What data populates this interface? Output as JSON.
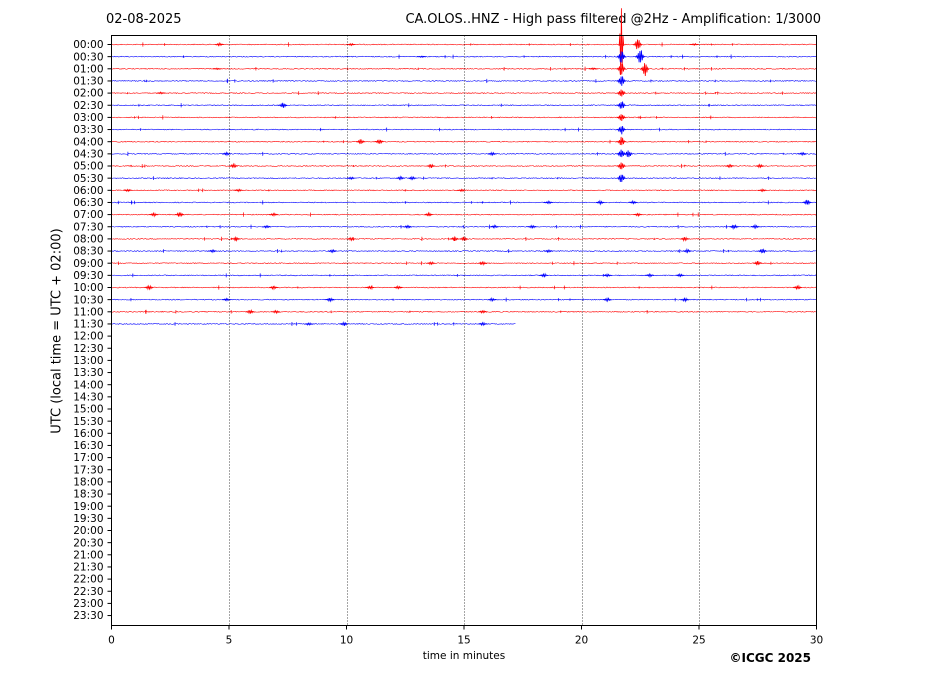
{
  "header": {
    "date": "02-08-2025",
    "title": "CA.OLOS..HNZ - High pass filtered @2Hz - Amplification: 1/3000"
  },
  "footer": {
    "copyright": "©ICGC 2025"
  },
  "chart_data": {
    "type": "line",
    "title": "CA.OLOS..HNZ - High pass filtered @2Hz - Amplification: 1/3000",
    "xlabel": "time in minutes",
    "ylabel": "UTC (local time = UTC + 02:00)",
    "xlim": [
      0,
      30
    ],
    "x_ticks": [
      0,
      5,
      10,
      15,
      20,
      25,
      30
    ],
    "vertical_gridlines_at": [
      5,
      10,
      15,
      20,
      25
    ],
    "row_labels": [
      "00:00",
      "00:30",
      "01:00",
      "01:30",
      "02:00",
      "02:30",
      "03:00",
      "03:30",
      "04:00",
      "04:30",
      "05:00",
      "05:30",
      "06:00",
      "06:30",
      "07:00",
      "07:30",
      "08:00",
      "08:30",
      "09:00",
      "09:30",
      "10:00",
      "10:30",
      "11:00",
      "11:30",
      "12:00",
      "12:30",
      "13:00",
      "13:30",
      "14:00",
      "14:30",
      "15:00",
      "15:30",
      "16:00",
      "16:30",
      "17:00",
      "17:30",
      "18:00",
      "18:30",
      "19:00",
      "19:30",
      "20:00",
      "20:30",
      "21:00",
      "21:30",
      "22:00",
      "22:30",
      "23:00",
      "23:30"
    ],
    "colors": {
      "even_rows": "#ff0000",
      "odd_rows": "#0000ff",
      "grid": "#000000"
    },
    "traces": [
      {
        "row": "00:00",
        "end_minute": 30,
        "events": [
          {
            "minute": 4.6,
            "amp": 0.3
          },
          {
            "minute": 10.2,
            "amp": 0.2
          },
          {
            "minute": 21.7,
            "amp": 9.5,
            "duration": 0.1
          },
          {
            "minute": 22.4,
            "amp": 1.2
          },
          {
            "minute": 24.8,
            "amp": 0.2
          }
        ]
      },
      {
        "row": "00:30",
        "end_minute": 30,
        "events": [
          {
            "minute": 13.2,
            "amp": 0.15
          },
          {
            "minute": 21.7,
            "amp": 1.5
          },
          {
            "minute": 22.5,
            "amp": 1.8
          }
        ]
      },
      {
        "row": "01:00",
        "end_minute": 30,
        "events": [
          {
            "minute": 4.5,
            "amp": 0.15
          },
          {
            "minute": 20.5,
            "amp": 0.2
          },
          {
            "minute": 21.7,
            "amp": 1.5
          },
          {
            "minute": 22.7,
            "amp": 1.5
          }
        ]
      },
      {
        "row": "01:30",
        "end_minute": 30,
        "events": [
          {
            "minute": 21.7,
            "amp": 1.2
          }
        ]
      },
      {
        "row": "02:00",
        "end_minute": 30,
        "events": [
          {
            "minute": 2.1,
            "amp": 0.2
          },
          {
            "minute": 21.7,
            "amp": 1.0
          }
        ]
      },
      {
        "row": "02:30",
        "end_minute": 30,
        "events": [
          {
            "minute": 7.3,
            "amp": 0.6
          },
          {
            "minute": 21.7,
            "amp": 1.0
          }
        ]
      },
      {
        "row": "03:00",
        "end_minute": 30,
        "events": [
          {
            "minute": 21.7,
            "amp": 1.0
          }
        ]
      },
      {
        "row": "03:30",
        "end_minute": 30,
        "events": [
          {
            "minute": 21.7,
            "amp": 1.0
          }
        ]
      },
      {
        "row": "04:00",
        "end_minute": 30,
        "events": [
          {
            "minute": 10.6,
            "amp": 0.5
          },
          {
            "minute": 11.4,
            "amp": 0.55
          },
          {
            "minute": 21.7,
            "amp": 1.0
          }
        ]
      },
      {
        "row": "04:30",
        "end_minute": 30,
        "events": [
          {
            "minute": 4.9,
            "amp": 0.3
          },
          {
            "minute": 16.2,
            "amp": 0.3
          },
          {
            "minute": 21.7,
            "amp": 1.0
          },
          {
            "minute": 22.0,
            "amp": 0.8
          },
          {
            "minute": 29.4,
            "amp": 0.3
          }
        ]
      },
      {
        "row": "05:00",
        "end_minute": 30,
        "events": [
          {
            "minute": 5.2,
            "amp": 0.4
          },
          {
            "minute": 13.6,
            "amp": 0.4
          },
          {
            "minute": 21.7,
            "amp": 1.0
          },
          {
            "minute": 26.3,
            "amp": 0.3
          },
          {
            "minute": 27.6,
            "amp": 0.35
          }
        ]
      },
      {
        "row": "05:30",
        "end_minute": 30,
        "events": [
          {
            "minute": 10.2,
            "amp": 0.25
          },
          {
            "minute": 12.3,
            "amp": 0.35
          },
          {
            "minute": 12.8,
            "amp": 0.35
          },
          {
            "minute": 21.7,
            "amp": 1.0
          }
        ]
      },
      {
        "row": "06:00",
        "end_minute": 30,
        "events": [
          {
            "minute": 0.7,
            "amp": 0.25
          },
          {
            "minute": 5.4,
            "amp": 0.25
          },
          {
            "minute": 14.9,
            "amp": 0.25
          },
          {
            "minute": 27.7,
            "amp": 0.25
          }
        ]
      },
      {
        "row": "06:30",
        "end_minute": 30,
        "events": [
          {
            "minute": 18.6,
            "amp": 0.3
          },
          {
            "minute": 20.8,
            "amp": 0.35
          },
          {
            "minute": 22.2,
            "amp": 0.3
          },
          {
            "minute": 29.6,
            "amp": 0.55
          }
        ]
      },
      {
        "row": "07:00",
        "end_minute": 30,
        "events": [
          {
            "minute": 1.8,
            "amp": 0.35
          },
          {
            "minute": 2.9,
            "amp": 0.55
          },
          {
            "minute": 6.9,
            "amp": 0.3
          },
          {
            "minute": 13.5,
            "amp": 0.35
          },
          {
            "minute": 22.4,
            "amp": 0.3
          }
        ]
      },
      {
        "row": "07:30",
        "end_minute": 30,
        "events": [
          {
            "minute": 6.6,
            "amp": 0.25
          },
          {
            "minute": 12.6,
            "amp": 0.3
          },
          {
            "minute": 16.3,
            "amp": 0.3
          },
          {
            "minute": 17.9,
            "amp": 0.35
          },
          {
            "minute": 26.5,
            "amp": 0.45
          },
          {
            "minute": 27.4,
            "amp": 0.35
          }
        ]
      },
      {
        "row": "08:00",
        "end_minute": 30,
        "events": [
          {
            "minute": 5.3,
            "amp": 0.35
          },
          {
            "minute": 10.2,
            "amp": 0.35
          },
          {
            "minute": 14.6,
            "amp": 0.45
          },
          {
            "minute": 15.0,
            "amp": 0.45
          },
          {
            "minute": 24.4,
            "amp": 0.4
          }
        ]
      },
      {
        "row": "08:30",
        "end_minute": 30,
        "events": [
          {
            "minute": 4.3,
            "amp": 0.25
          },
          {
            "minute": 9.4,
            "amp": 0.3
          },
          {
            "minute": 18.6,
            "amp": 0.3
          },
          {
            "minute": 24.5,
            "amp": 0.35
          },
          {
            "minute": 27.7,
            "amp": 0.5
          }
        ]
      },
      {
        "row": "09:00",
        "end_minute": 30,
        "events": [
          {
            "minute": 13.6,
            "amp": 0.3
          },
          {
            "minute": 15.8,
            "amp": 0.3
          },
          {
            "minute": 27.5,
            "amp": 0.45
          }
        ]
      },
      {
        "row": "09:30",
        "end_minute": 30,
        "events": [
          {
            "minute": 18.4,
            "amp": 0.4
          },
          {
            "minute": 21.1,
            "amp": 0.3
          },
          {
            "minute": 22.9,
            "amp": 0.3
          },
          {
            "minute": 24.2,
            "amp": 0.3
          }
        ]
      },
      {
        "row": "10:00",
        "end_minute": 30,
        "events": [
          {
            "minute": 1.6,
            "amp": 0.45
          },
          {
            "minute": 6.9,
            "amp": 0.35
          },
          {
            "minute": 11.0,
            "amp": 0.3
          },
          {
            "minute": 12.2,
            "amp": 0.3
          },
          {
            "minute": 29.2,
            "amp": 0.4
          }
        ]
      },
      {
        "row": "10:30",
        "end_minute": 30,
        "events": [
          {
            "minute": 4.9,
            "amp": 0.3
          },
          {
            "minute": 9.3,
            "amp": 0.4
          },
          {
            "minute": 16.2,
            "amp": 0.3
          },
          {
            "minute": 21.1,
            "amp": 0.35
          },
          {
            "minute": 24.4,
            "amp": 0.35
          }
        ]
      },
      {
        "row": "11:00",
        "end_minute": 30,
        "events": [
          {
            "minute": 5.9,
            "amp": 0.45
          },
          {
            "minute": 7.0,
            "amp": 0.3
          },
          {
            "minute": 15.8,
            "amp": 0.3
          }
        ]
      },
      {
        "row": "11:30",
        "end_minute": 17.2,
        "events": [
          {
            "minute": 8.4,
            "amp": 0.25
          },
          {
            "minute": 9.9,
            "amp": 0.4
          },
          {
            "minute": 15.8,
            "amp": 0.3
          }
        ]
      }
    ]
  }
}
